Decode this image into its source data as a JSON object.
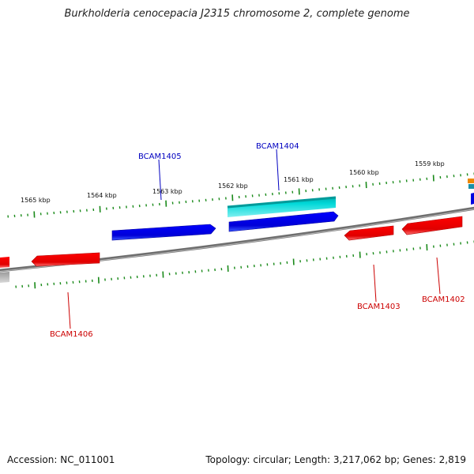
{
  "title": "Burkholderia cenocepacia J2315 chromosome 2, complete genome",
  "accession": "Accession: NC_011001",
  "topology": "Topology: circular; Length: 3,217,062 bp; Genes: 2,819",
  "kbp_labels": [
    "1565 kbp",
    "1564 kbp",
    "1563 kbp",
    "1562 kbp",
    "1561 kbp",
    "1560 kbp",
    "1559 kbp"
  ],
  "gene_labels": {
    "BCAM1405": "BCAM1405",
    "BCAM1404": "BCAM1404",
    "BCAM1406": "BCAM1406",
    "BCAM1403": "BCAM1403",
    "BCAM1402": "BCAM1402"
  },
  "colors": {
    "forward_cds": "#0000e0",
    "reverse_cds": "#e00000",
    "rna": "#00c8c8",
    "tick": "#1a8a1a",
    "backbone": "#808080",
    "forward_label": "#0000c0",
    "reverse_label": "#cc0000"
  }
}
